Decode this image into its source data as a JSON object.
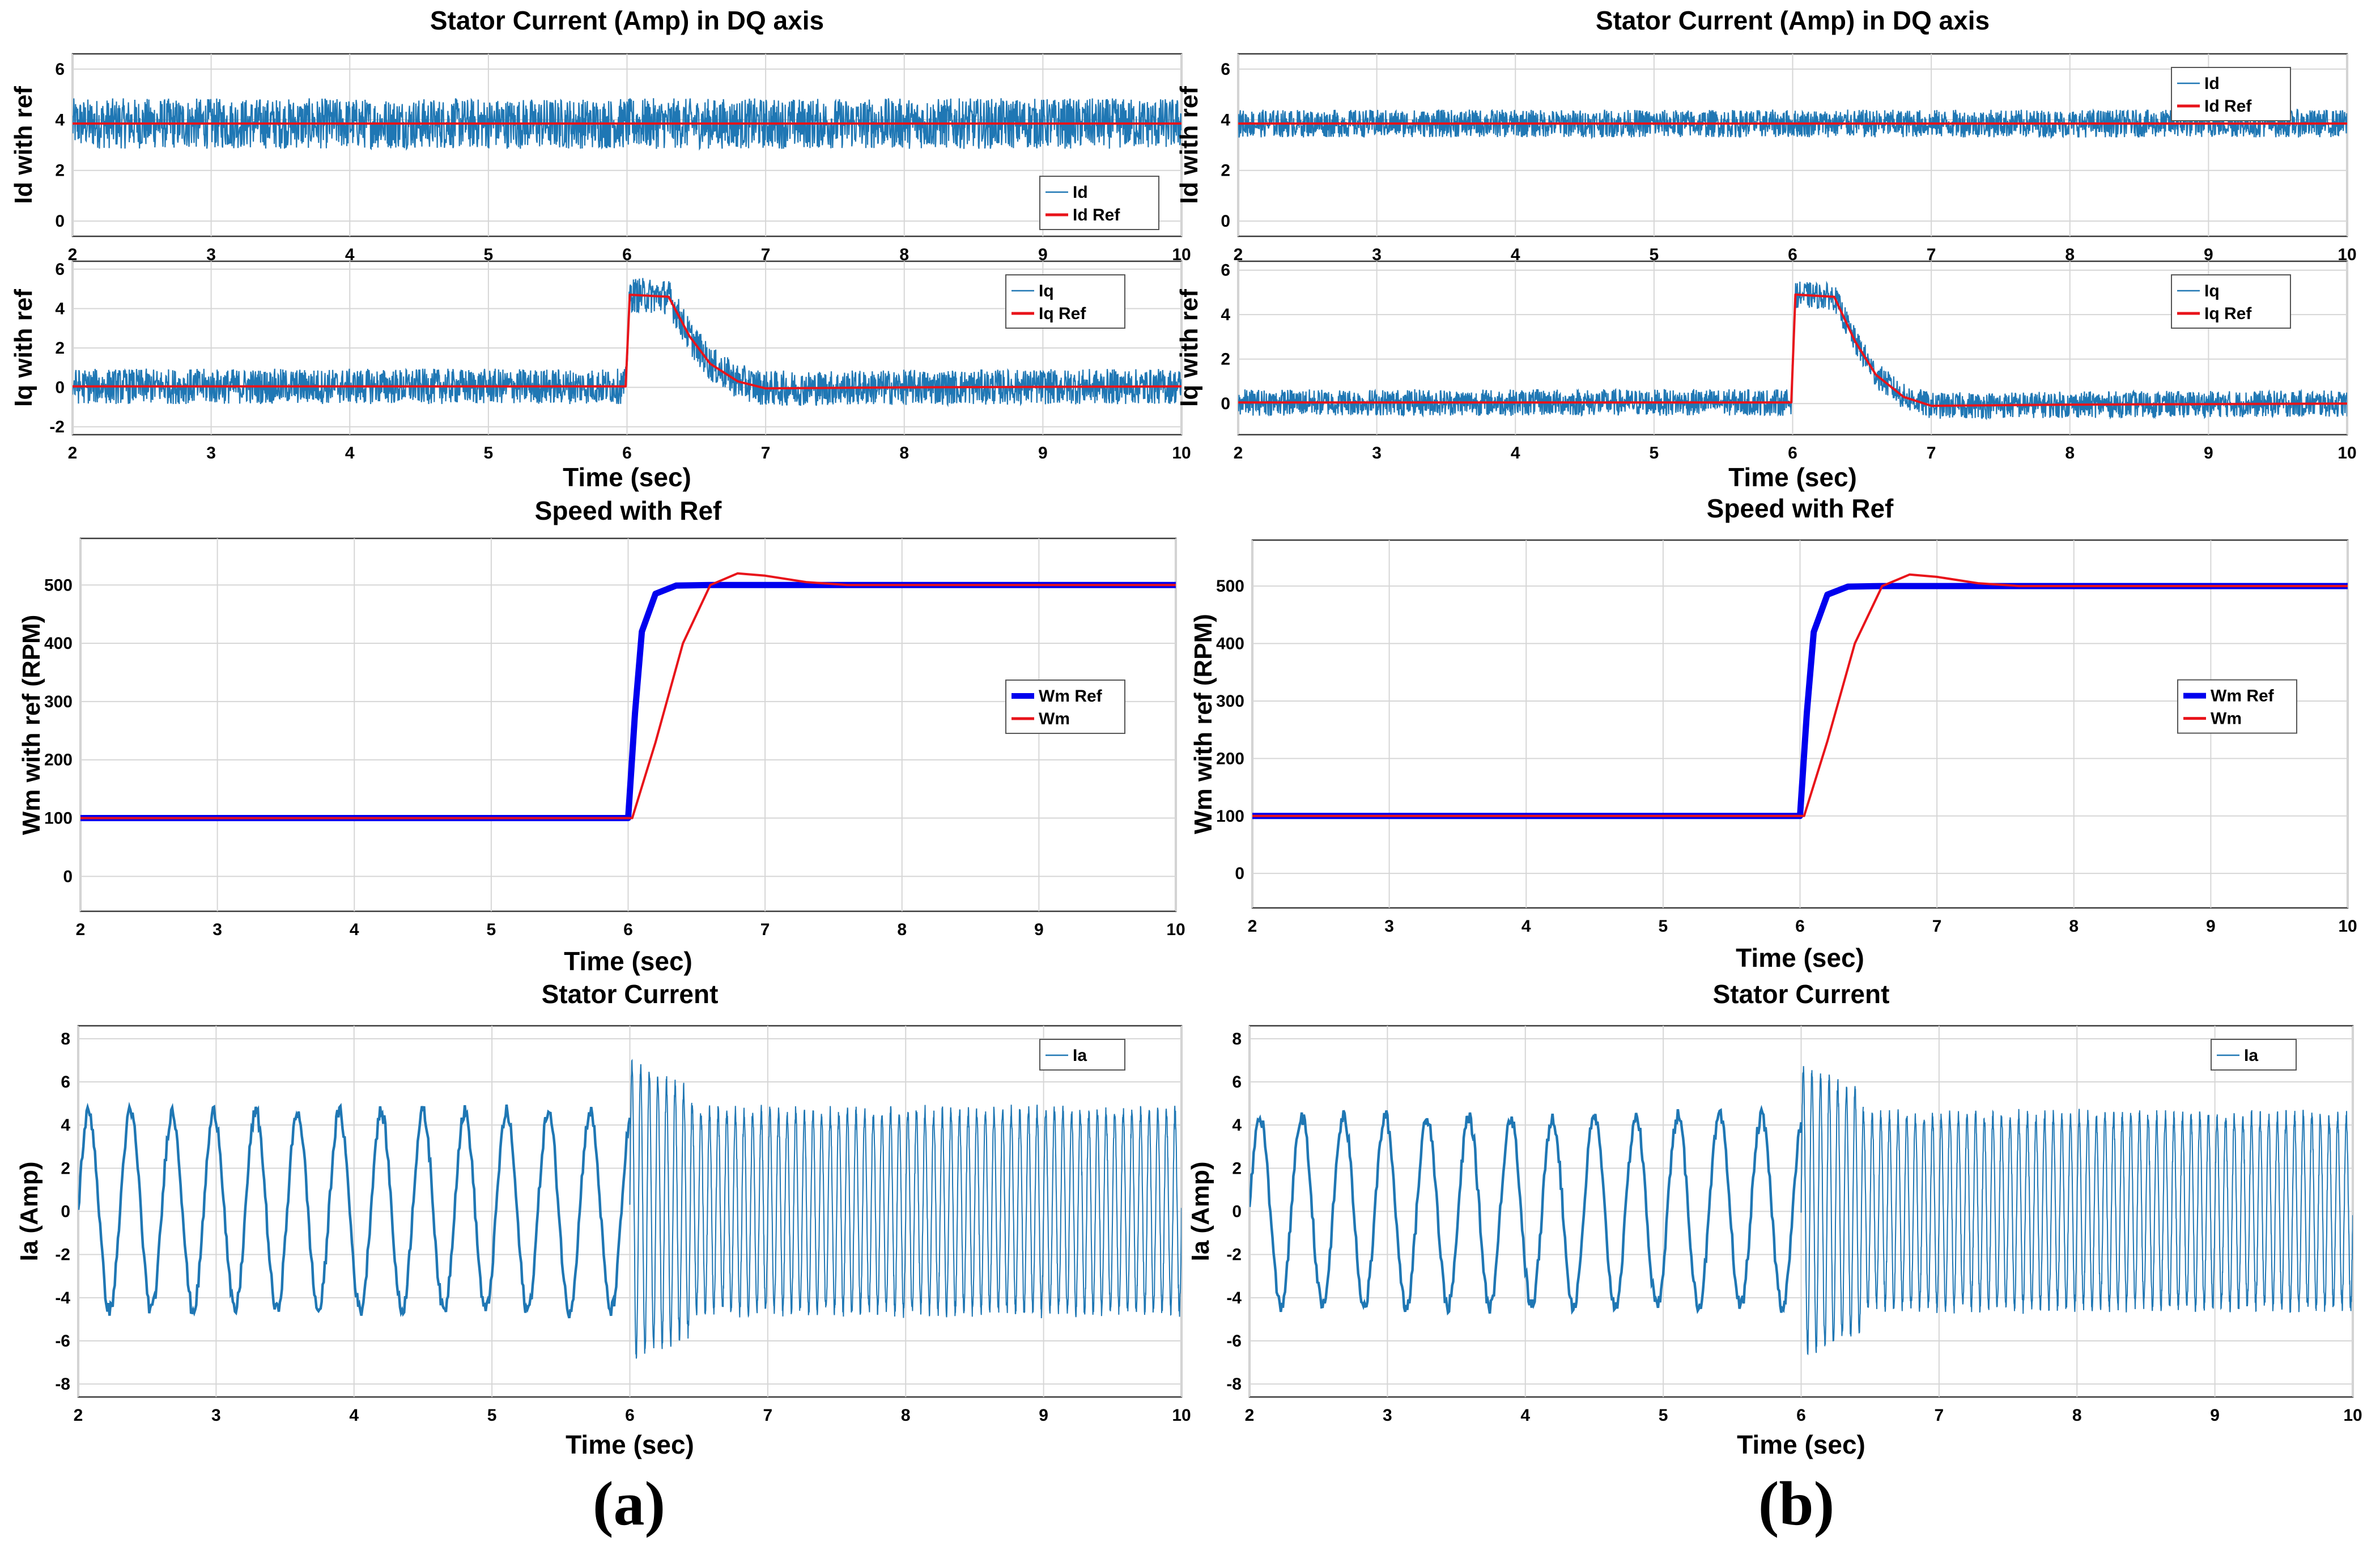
{
  "colors": {
    "signal": "#1f77b4",
    "reference": "#e8131a",
    "speed_ref": "#0000ee",
    "speed_meas": "#e8131a",
    "grid": "#d6d6d6"
  },
  "panel_labels": [
    "(a)",
    "(b)"
  ],
  "chart_data": [
    {
      "id": "a-id",
      "type": "line",
      "title": "Stator Current (Amp) in DQ axis",
      "xlabel": "",
      "ylabel": "Id with ref",
      "xlim": [
        2,
        10
      ],
      "ylim": [
        -0.6,
        6.6
      ],
      "xticks": [
        2,
        3,
        4,
        5,
        6,
        7,
        8,
        9,
        10
      ],
      "yticks": [
        0,
        2,
        4,
        6
      ],
      "legend_position": "bottom-right",
      "series": [
        {
          "name": "Id",
          "style": "noisy",
          "color": "#1f77b4",
          "band": 1.0,
          "points": [
            [
              2,
              3.85
            ],
            [
              10,
              3.85
            ]
          ]
        },
        {
          "name": "Id Ref",
          "style": "line",
          "color": "#e8131a",
          "points": [
            [
              2,
              3.85
            ],
            [
              10,
              3.85
            ]
          ]
        }
      ]
    },
    {
      "id": "a-iq",
      "type": "line",
      "title": "",
      "xlabel": "Time (sec)",
      "ylabel": "Iq with ref",
      "xlim": [
        2,
        10
      ],
      "ylim": [
        -2.4,
        6.4
      ],
      "xticks": [
        2,
        3,
        4,
        5,
        6,
        7,
        8,
        9,
        10
      ],
      "yticks": [
        -2,
        0,
        2,
        4,
        6
      ],
      "legend_position": "top-right",
      "series": [
        {
          "name": "Iq",
          "style": "noisy",
          "color": "#1f77b4",
          "band": 0.9,
          "points": [
            [
              2,
              0.05
            ],
            [
              5.99,
              0.05
            ],
            [
              6.02,
              4.7
            ],
            [
              6.3,
              4.6
            ],
            [
              6.45,
              2.6
            ],
            [
              6.6,
              1.2
            ],
            [
              6.8,
              0.3
            ],
            [
              7.0,
              -0.05
            ],
            [
              8,
              0.0
            ],
            [
              10,
              0.05
            ]
          ]
        },
        {
          "name": "Iq Ref",
          "style": "line",
          "color": "#e8131a",
          "points": [
            [
              2,
              0.05
            ],
            [
              5.99,
              0.05
            ],
            [
              6.02,
              4.7
            ],
            [
              6.3,
              4.6
            ],
            [
              6.45,
              2.6
            ],
            [
              6.6,
              1.2
            ],
            [
              6.8,
              0.3
            ],
            [
              7.0,
              -0.05
            ],
            [
              8,
              0.0
            ],
            [
              10,
              0.05
            ]
          ]
        }
      ]
    },
    {
      "id": "a-speed",
      "type": "line",
      "title": "Speed with Ref",
      "xlabel": "Time (sec)",
      "ylabel": "Wm with ref (RPM)",
      "xlim": [
        2,
        10
      ],
      "ylim": [
        -60,
        580
      ],
      "xticks": [
        2,
        3,
        4,
        5,
        6,
        7,
        8,
        9,
        10
      ],
      "yticks": [
        0,
        100,
        200,
        300,
        400,
        500
      ],
      "legend_position": "right",
      "series": [
        {
          "name": "Wm Ref",
          "style": "thick",
          "color": "#0000ee",
          "points": [
            [
              2,
              100
            ],
            [
              6.0,
              100
            ],
            [
              6.05,
              280
            ],
            [
              6.1,
              420
            ],
            [
              6.2,
              485
            ],
            [
              6.35,
              499
            ],
            [
              6.6,
              500
            ],
            [
              10,
              500
            ]
          ]
        },
        {
          "name": "Wm",
          "style": "line",
          "color": "#e8131a",
          "points": [
            [
              2,
              100
            ],
            [
              6.03,
              100
            ],
            [
              6.2,
              230
            ],
            [
              6.4,
              400
            ],
            [
              6.6,
              500
            ],
            [
              6.8,
              520
            ],
            [
              7.0,
              516
            ],
            [
              7.3,
              505
            ],
            [
              7.6,
              500
            ],
            [
              10,
              500
            ]
          ]
        }
      ]
    },
    {
      "id": "a-ia",
      "type": "line",
      "title": "Stator Current",
      "xlabel": "Time (sec)",
      "ylabel": "Ia (Amp)",
      "xlim": [
        2,
        10
      ],
      "ylim": [
        -8.6,
        8.6
      ],
      "xticks": [
        2,
        3,
        4,
        5,
        6,
        7,
        8,
        9,
        10
      ],
      "yticks": [
        -8,
        -6,
        -4,
        -2,
        0,
        2,
        4,
        6,
        8
      ],
      "legend_position": "top-right",
      "series": [
        {
          "name": "Ia",
          "style": "sine",
          "color": "#1f77b4",
          "segments": [
            {
              "t0": 2,
              "t1": 6,
              "freq": 3.3,
              "amp": 4.6
            },
            {
              "t0": 6,
              "t1": 6.45,
              "freq": 16,
              "amp": 6.8
            },
            {
              "t0": 6.45,
              "t1": 10,
              "freq": 16,
              "amp": 4.6
            }
          ]
        }
      ]
    },
    {
      "id": "b-id",
      "type": "line",
      "title": "Stator Current (Amp) in DQ axis",
      "xlabel": "",
      "ylabel": "Id with ref",
      "xlim": [
        2,
        10
      ],
      "ylim": [
        -0.6,
        6.6
      ],
      "xticks": [
        2,
        3,
        4,
        5,
        6,
        7,
        8,
        9,
        10
      ],
      "yticks": [
        0,
        2,
        4,
        6
      ],
      "legend_position": "top-right",
      "series": [
        {
          "name": "Id",
          "style": "noisy",
          "color": "#1f77b4",
          "band": 0.55,
          "points": [
            [
              2,
              3.85
            ],
            [
              10,
              3.85
            ]
          ]
        },
        {
          "name": "Id Ref",
          "style": "line",
          "color": "#e8131a",
          "points": [
            [
              2,
              3.85
            ],
            [
              10,
              3.85
            ]
          ]
        }
      ]
    },
    {
      "id": "b-iq",
      "type": "line",
      "title": "",
      "xlabel": "Time (sec)",
      "ylabel": "Iq with ref",
      "xlim": [
        2,
        10
      ],
      "ylim": [
        -1.4,
        6.4
      ],
      "xticks": [
        2,
        3,
        4,
        5,
        6,
        7,
        8,
        9,
        10
      ],
      "yticks": [
        0,
        2,
        4,
        6
      ],
      "legend_position": "top-right",
      "series": [
        {
          "name": "Iq",
          "style": "noisy",
          "color": "#1f77b4",
          "band": 0.6,
          "points": [
            [
              2,
              0.05
            ],
            [
              5.99,
              0.05
            ],
            [
              6.02,
              4.9
            ],
            [
              6.3,
              4.8
            ],
            [
              6.45,
              2.8
            ],
            [
              6.6,
              1.3
            ],
            [
              6.8,
              0.3
            ],
            [
              7.0,
              -0.1
            ],
            [
              8,
              -0.05
            ],
            [
              10,
              0.0
            ]
          ]
        },
        {
          "name": "Iq Ref",
          "style": "line",
          "color": "#e8131a",
          "points": [
            [
              2,
              0.05
            ],
            [
              5.99,
              0.05
            ],
            [
              6.02,
              4.9
            ],
            [
              6.3,
              4.8
            ],
            [
              6.45,
              2.8
            ],
            [
              6.6,
              1.3
            ],
            [
              6.8,
              0.3
            ],
            [
              7.0,
              -0.1
            ],
            [
              8,
              -0.05
            ],
            [
              10,
              0.0
            ]
          ]
        }
      ]
    },
    {
      "id": "b-speed",
      "type": "line",
      "title": "Speed with Ref",
      "xlabel": "Time (sec)",
      "ylabel": "Wm with ref (RPM)",
      "xlim": [
        2,
        10
      ],
      "ylim": [
        -60,
        580
      ],
      "xticks": [
        2,
        3,
        4,
        5,
        6,
        7,
        8,
        9,
        10
      ],
      "yticks": [
        0,
        100,
        200,
        300,
        400,
        500
      ],
      "legend_position": "right",
      "series": [
        {
          "name": "Wm Ref",
          "style": "thick",
          "color": "#0000ee",
          "points": [
            [
              2,
              100
            ],
            [
              6.0,
              100
            ],
            [
              6.05,
              280
            ],
            [
              6.1,
              420
            ],
            [
              6.2,
              485
            ],
            [
              6.35,
              499
            ],
            [
              6.6,
              500
            ],
            [
              10,
              500
            ]
          ]
        },
        {
          "name": "Wm",
          "style": "line",
          "color": "#e8131a",
          "points": [
            [
              2,
              100
            ],
            [
              6.03,
              100
            ],
            [
              6.2,
              230
            ],
            [
              6.4,
              400
            ],
            [
              6.6,
              500
            ],
            [
              6.8,
              520
            ],
            [
              7.0,
              516
            ],
            [
              7.3,
              505
            ],
            [
              7.6,
              500
            ],
            [
              10,
              500
            ]
          ]
        }
      ]
    },
    {
      "id": "b-ia",
      "type": "line",
      "title": "Stator Current",
      "xlabel": "Time (sec)",
      "ylabel": "Ia (Amp)",
      "xlim": [
        2,
        10
      ],
      "ylim": [
        -8.6,
        8.6
      ],
      "xticks": [
        2,
        3,
        4,
        5,
        6,
        7,
        8,
        9,
        10
      ],
      "yticks": [
        -8,
        -6,
        -4,
        -2,
        0,
        2,
        4,
        6,
        8
      ],
      "legend_position": "top-right",
      "series": [
        {
          "name": "Ia",
          "style": "sine",
          "color": "#1f77b4",
          "segments": [
            {
              "t0": 2,
              "t1": 6,
              "freq": 3.3,
              "amp": 4.4
            },
            {
              "t0": 6,
              "t1": 6.45,
              "freq": 16,
              "amp": 6.6
            },
            {
              "t0": 6.45,
              "t1": 10,
              "freq": 16,
              "amp": 4.4
            }
          ]
        }
      ]
    }
  ]
}
